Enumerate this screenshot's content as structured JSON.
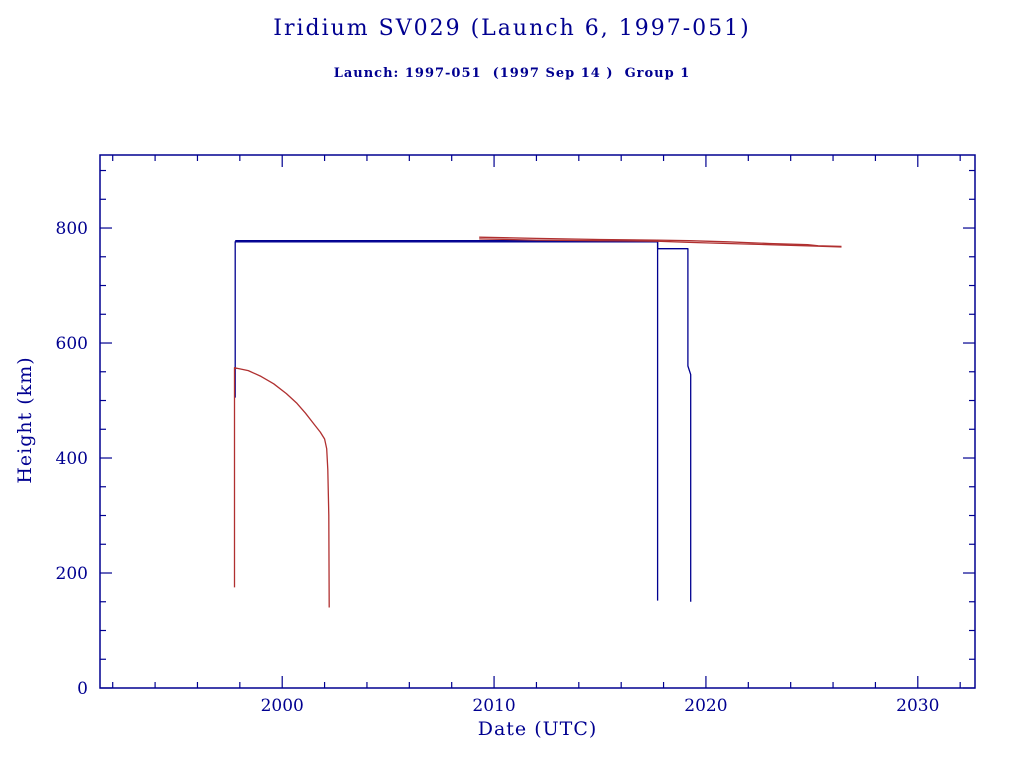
{
  "colors": {
    "axis": "#000090",
    "blue_series": "#000090",
    "red_series": "#b03030",
    "background": "#ffffff"
  },
  "chart_data": {
    "type": "line",
    "title": "Iridium SV029 (Launch 6, 1997-051)",
    "subtitle": "Launch: 1997-051  (1997 Sep 14 )  Group 1",
    "xlabel": "Date (UTC)",
    "ylabel": "Height (km)",
    "xlim": [
      1991.4,
      2032.7
    ],
    "ylim": [
      0,
      927
    ],
    "x_major_ticks": [
      2000,
      2010,
      2020,
      2030
    ],
    "x_minor_step": 2,
    "y_major_ticks": [
      0,
      200,
      400,
      600,
      800
    ],
    "y_minor_step": 50,
    "grid": false,
    "legend": "none",
    "series": [
      {
        "name": "blue-orbit-raise-and-deorbit",
        "color": "#000090",
        "points": [
          [
            1997.78,
            505
          ],
          [
            1997.78,
            776
          ],
          [
            2017.72,
            776
          ],
          [
            2017.72,
            152
          ]
        ]
      },
      {
        "name": "blue-apogee-step-and-final-decay",
        "color": "#000090",
        "points": [
          [
            1997.78,
            778
          ],
          [
            2017.72,
            778
          ],
          [
            2017.72,
            764
          ],
          [
            2019.15,
            764
          ],
          [
            2019.15,
            560
          ],
          [
            2019.28,
            545
          ],
          [
            2019.28,
            150
          ]
        ]
      },
      {
        "name": "red-early-decay-curve",
        "color": "#b03030",
        "points": [
          [
            1997.75,
            175
          ],
          [
            1997.75,
            557
          ],
          [
            1998.4,
            552
          ],
          [
            1999.0,
            542
          ],
          [
            1999.6,
            529
          ],
          [
            2000.2,
            512
          ],
          [
            2000.7,
            495
          ],
          [
            2001.1,
            478
          ],
          [
            2001.5,
            459
          ],
          [
            2001.8,
            445
          ],
          [
            2002.0,
            433
          ],
          [
            2002.1,
            416
          ],
          [
            2002.15,
            380
          ],
          [
            2002.2,
            300
          ],
          [
            2002.22,
            140
          ]
        ]
      },
      {
        "name": "red-upper-apogee",
        "color": "#b03030",
        "points": [
          [
            2009.3,
            784
          ],
          [
            2012.0,
            782
          ],
          [
            2015.0,
            780
          ],
          [
            2017.7,
            779
          ],
          [
            2019.2,
            778
          ],
          [
            2021.0,
            776
          ],
          [
            2023.0,
            773
          ],
          [
            2024.8,
            771
          ],
          [
            2025.3,
            769
          ],
          [
            2026.4,
            768
          ]
        ]
      },
      {
        "name": "red-upper-perigee",
        "color": "#b03030",
        "points": [
          [
            2009.3,
            781
          ],
          [
            2012.0,
            779
          ],
          [
            2015.0,
            778
          ],
          [
            2017.7,
            777
          ],
          [
            2019.2,
            775
          ],
          [
            2021.0,
            773
          ],
          [
            2023.0,
            771
          ],
          [
            2024.8,
            769
          ],
          [
            2026.4,
            767
          ]
        ]
      }
    ]
  }
}
